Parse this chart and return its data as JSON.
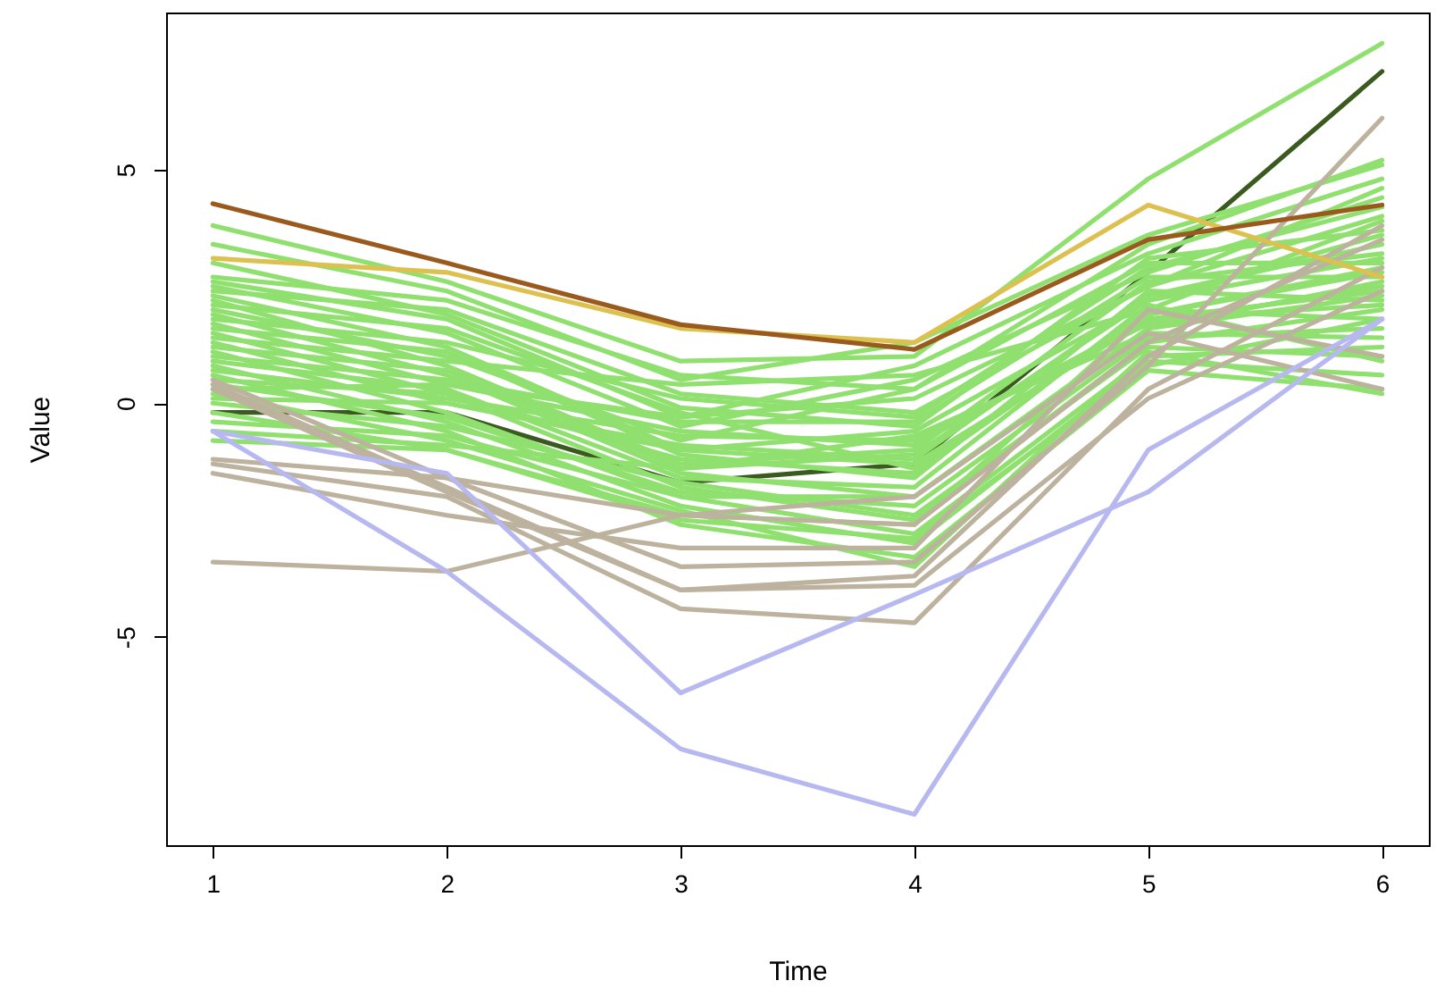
{
  "chart_data": {
    "type": "line",
    "xlabel": "Time",
    "ylabel": "Value",
    "x": [
      1,
      2,
      3,
      4,
      5,
      6
    ],
    "xlim": [
      0.8,
      6.2
    ],
    "xticks": [
      1,
      2,
      3,
      4,
      5,
      6
    ],
    "ylim": [
      -9.46,
      8.36
    ],
    "yticks": [
      -5,
      0,
      5
    ],
    "grid": false,
    "marker": "none",
    "series": [
      {
        "color": "#3a5a20",
        "values": [
          -0.2,
          -0.2,
          -1.7,
          -1.3,
          2.8,
          7.1
        ]
      },
      {
        "color": "#90e070",
        "values": [
          3.8,
          2.6,
          0.9,
          1.0,
          4.8,
          7.7
        ]
      },
      {
        "color": "#90e070",
        "values": [
          3.4,
          2.4,
          0.5,
          1.3,
          3.6,
          5.1
        ]
      },
      {
        "color": "#90e070",
        "values": [
          2.6,
          1.8,
          -0.3,
          0.8,
          3.2,
          4.8
        ]
      },
      {
        "color": "#90e070",
        "values": [
          2.5,
          1.5,
          -0.5,
          0.5,
          2.8,
          4.4
        ]
      },
      {
        "color": "#90e070",
        "values": [
          2.4,
          2.0,
          0.2,
          -0.2,
          2.5,
          4.0
        ]
      },
      {
        "color": "#90e070",
        "values": [
          2.3,
          1.2,
          -1.0,
          -0.6,
          2.2,
          3.6
        ]
      },
      {
        "color": "#90e070",
        "values": [
          2.2,
          0.8,
          -1.3,
          -1.0,
          2.6,
          3.2
        ]
      },
      {
        "color": "#90e070",
        "values": [
          2.1,
          1.6,
          -0.2,
          -1.4,
          1.9,
          2.9
        ]
      },
      {
        "color": "#90e070",
        "values": [
          2.0,
          1.0,
          -0.8,
          0.3,
          3.0,
          3.0
        ]
      },
      {
        "color": "#90e070",
        "values": [
          1.9,
          0.6,
          -1.5,
          -2.0,
          1.6,
          2.6
        ]
      },
      {
        "color": "#90e070",
        "values": [
          1.8,
          1.3,
          0.1,
          -0.3,
          2.9,
          4.2
        ]
      },
      {
        "color": "#90e070",
        "values": [
          1.7,
          0.4,
          -0.6,
          -0.9,
          1.8,
          2.4
        ]
      },
      {
        "color": "#90e070",
        "values": [
          1.6,
          1.1,
          -1.1,
          -1.6,
          2.4,
          2.2
        ]
      },
      {
        "color": "#90e070",
        "values": [
          1.5,
          0.2,
          -1.8,
          -2.5,
          1.3,
          2.0
        ]
      },
      {
        "color": "#90e070",
        "values": [
          1.4,
          0.9,
          0.4,
          0.6,
          2.0,
          1.8
        ]
      },
      {
        "color": "#90e070",
        "values": [
          1.3,
          0.0,
          -0.9,
          -1.2,
          2.3,
          3.4
        ]
      },
      {
        "color": "#90e070",
        "values": [
          1.2,
          0.7,
          -1.4,
          -0.7,
          1.5,
          1.4
        ]
      },
      {
        "color": "#90e070",
        "values": [
          1.1,
          -0.2,
          -2.0,
          -2.8,
          1.0,
          1.2
        ]
      },
      {
        "color": "#90e070",
        "values": [
          1.0,
          0.5,
          -0.4,
          -0.4,
          2.7,
          2.7
        ]
      },
      {
        "color": "#90e070",
        "values": [
          0.9,
          0.3,
          -1.6,
          -1.8,
          2.1,
          0.9
        ]
      },
      {
        "color": "#90e070",
        "values": [
          0.8,
          -0.4,
          -2.2,
          -3.0,
          0.9,
          0.6
        ]
      },
      {
        "color": "#90e070",
        "values": [
          0.7,
          0.1,
          -0.7,
          -0.8,
          1.7,
          2.5
        ]
      },
      {
        "color": "#90e070",
        "values": [
          0.6,
          -0.6,
          -2.6,
          -3.3,
          0.7,
          0.3
        ]
      },
      {
        "color": "#90e070",
        "values": [
          0.5,
          0.2,
          -1.2,
          -1.5,
          2.0,
          3.9
        ]
      },
      {
        "color": "#90e070",
        "values": [
          0.4,
          -0.3,
          -1.9,
          -2.2,
          1.4,
          1.6
        ]
      },
      {
        "color": "#90e070",
        "values": [
          0.3,
          0.4,
          -0.3,
          0.1,
          2.5,
          4.6
        ]
      },
      {
        "color": "#90e070",
        "values": [
          0.2,
          -0.8,
          -2.3,
          -3.5,
          1.1,
          0.2
        ]
      },
      {
        "color": "#90e070",
        "values": [
          0.1,
          0.0,
          -1.0,
          -1.3,
          1.8,
          2.1
        ]
      },
      {
        "color": "#90e070",
        "values": [
          0.0,
          -0.5,
          -1.7,
          -2.4,
          1.2,
          1.0
        ]
      },
      {
        "color": "#90e070",
        "values": [
          -0.2,
          -1.0,
          -2.5,
          -2.9,
          0.8,
          1.8
        ]
      },
      {
        "color": "#90e070",
        "values": [
          -0.4,
          -0.7,
          -2.0,
          -2.0,
          1.6,
          2.3
        ]
      },
      {
        "color": "#90e070",
        "values": [
          -0.6,
          -0.9,
          -1.4,
          -1.1,
          2.2,
          3.1
        ]
      },
      {
        "color": "#90e070",
        "values": [
          -0.8,
          -1.0,
          -2.4,
          -2.6,
          1.9,
          2.8
        ]
      },
      {
        "color": "#90e070",
        "values": [
          2.7,
          2.2,
          0.6,
          0.3,
          3.4,
          5.2
        ]
      },
      {
        "color": "#90e070",
        "values": [
          3.0,
          1.9,
          -0.1,
          -0.5,
          3.1,
          3.7
        ]
      },
      {
        "color": "#bcb29e",
        "values": [
          0.5,
          -1.6,
          -3.5,
          -3.4,
          0.8,
          6.1
        ]
      },
      {
        "color": "#bcb29e",
        "values": [
          0.4,
          -1.8,
          -4.0,
          -3.7,
          1.0,
          3.8
        ]
      },
      {
        "color": "#bcb29e",
        "values": [
          -1.2,
          -1.6,
          -2.4,
          -2.6,
          1.3,
          3.5
        ]
      },
      {
        "color": "#bcb29e",
        "values": [
          -1.3,
          -2.0,
          -4.4,
          -4.7,
          0.3,
          2.9
        ]
      },
      {
        "color": "#bcb29e",
        "values": [
          -1.5,
          -2.4,
          -3.1,
          -3.1,
          2.0,
          1.0
        ]
      },
      {
        "color": "#bcb29e",
        "values": [
          -3.4,
          -3.6,
          -2.4,
          -2.0,
          1.5,
          0.3
        ]
      },
      {
        "color": "#bcb29e",
        "values": [
          0.3,
          -1.9,
          -4.0,
          -3.9,
          0.1,
          2.4
        ]
      },
      {
        "color": "#b8b8f0",
        "values": [
          -0.6,
          -3.6,
          -7.4,
          -8.8,
          -1.0,
          1.8
        ]
      },
      {
        "color": "#b8b8f0",
        "values": [
          -0.6,
          -1.5,
          -6.2,
          -4.1,
          -1.9,
          1.8
        ]
      },
      {
        "color": "#dcc050",
        "values": [
          3.1,
          2.8,
          1.6,
          1.3,
          4.24,
          2.7
        ]
      },
      {
        "color": "#9a5a1e",
        "values": [
          4.27,
          3.0,
          1.68,
          1.15,
          3.5,
          4.24
        ]
      }
    ]
  }
}
